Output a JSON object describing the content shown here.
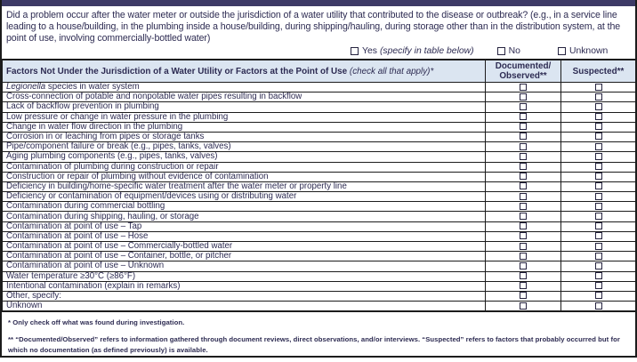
{
  "colors": {
    "topbar": "#3d3a66",
    "header_bg": "#dbe5f1",
    "text": "#2d2b52",
    "border": "#1c1c1c"
  },
  "question": "Did a problem occur after the water meter or outside the jurisdiction of a water utility that contributed to the disease or outbreak? (e.g., in a service line leading to a house/building, in the plumbing inside a house/building, during shipping/hauling, during storage other than in the distribution system, at the point of use, involving commercially-bottled water)",
  "options": [
    {
      "label": "Yes",
      "note": "(specify in table below)"
    },
    {
      "label": "No",
      "note": ""
    },
    {
      "label": "Unknown",
      "note": ""
    }
  ],
  "table": {
    "header": {
      "factors_bold": "Factors Not Under the Jurisdiction of a Water Utility or Factors at the Point of Use ",
      "factors_italic": "(check all that apply)*",
      "col2_line1": "Documented/",
      "col2_line2": "Observed**",
      "col3": "Suspected**"
    },
    "checkbox_columns": [
      "documented",
      "suspected"
    ],
    "rows": [
      {
        "italic": "Legionella",
        "text": " species in water system"
      },
      {
        "text": "Cross-connection of potable and nonpotable water pipes resulting in backflow"
      },
      {
        "text": "Lack of backflow prevention in plumbing"
      },
      {
        "text": "Low pressure or change in water pressure in the plumbing"
      },
      {
        "text": "Change in water flow direction in the plumbing"
      },
      {
        "text": "Corrosion in or leaching from pipes or storage tanks"
      },
      {
        "text": "Pipe/component failure or break (e.g., pipes, tanks, valves)"
      },
      {
        "text": "Aging plumbing components (e.g., pipes, tanks, valves)"
      },
      {
        "text": "Contamination of plumbing during construction or repair"
      },
      {
        "text": "Construction or repair of plumbing without evidence of contamination"
      },
      {
        "text": "Deficiency in building/home-specific water treatment after the water meter or property line"
      },
      {
        "text": "Deficiency or contamination of equipment/devices using or distributing water"
      },
      {
        "text": "Contamination during commercial bottling"
      },
      {
        "text": "Contamination during shipping, hauling, or storage"
      },
      {
        "text": "Contamination at point of use – Tap"
      },
      {
        "text": "Contamination at point of use – Hose"
      },
      {
        "text": "Contamination at point of use – Commercially-bottled water"
      },
      {
        "text": "Contamination at point of use – Container, bottle, or pitcher"
      },
      {
        "text": "Contamination at point of use – Unknown"
      },
      {
        "text": "Water temperature ≥30°C (≥86°F)"
      },
      {
        "text": "Intentional contamination (explain in remarks)"
      },
      {
        "text": "Other, specify:"
      },
      {
        "text": "Unknown"
      }
    ],
    "checkbox_state": "unchecked"
  },
  "footnotes": {
    "note1": "* Only check off what was found during investigation.",
    "note2": "** “Documented/Observed” refers to information gathered through document reviews, direct observations, and/or interviews. “Suspected” refers to factors that probably occurred but for which no documentation (as defined previously) is available."
  }
}
